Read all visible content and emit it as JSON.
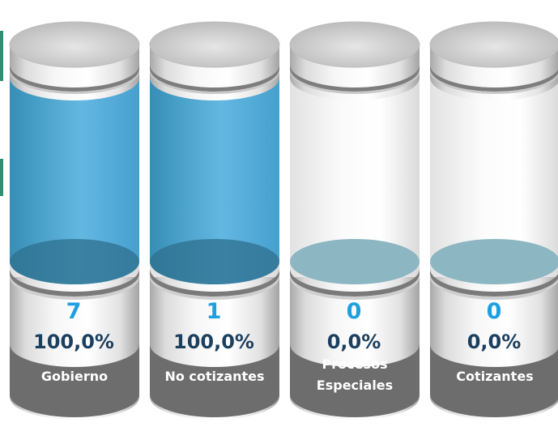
{
  "chart_data": {
    "type": "bar",
    "style": "3d-cylinders",
    "categories": [
      [
        "Gobierno"
      ],
      [
        "No cotizantes"
      ],
      [
        "Procesos",
        "Especiales"
      ],
      [
        "Cotizantes"
      ]
    ],
    "counts": [
      "7",
      "1",
      "0",
      "0"
    ],
    "percents": [
      "100,0%",
      "100,0%",
      "0,0%",
      "0,0%"
    ],
    "values": [
      7,
      1,
      0,
      0
    ],
    "fill_fraction": [
      1,
      1,
      0,
      0
    ]
  },
  "colors": {
    "count_text": "#1ea0e0",
    "percent_text": "#1b3f5e",
    "label_band": "#6d6d6d",
    "label_text": "#ffffff",
    "liquid_dark": "#2d8ab4",
    "liquid_light": "#5ab4df",
    "empty_liquid": "#8cb6c2",
    "accent": "#2f8f73"
  }
}
